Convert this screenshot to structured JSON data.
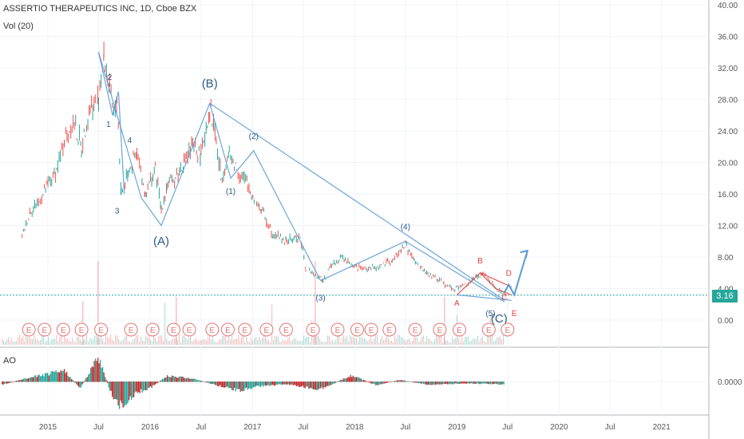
{
  "header": {
    "title": "ASSERTIO THERAPEUTICS INC, 1D, Cboe BZX",
    "volume_label": "Vol (20)"
  },
  "ao_label": "AO",
  "last_price": "3.16",
  "colors": {
    "up": "#26a69a",
    "down": "#ef5350",
    "wave_line": "#5b9bd5",
    "wave_red": "#e04040",
    "ao_up": "#26a69a",
    "ao_down": "#c62828"
  },
  "chart_data": {
    "type": "line",
    "title": "ASSERTIO THERAPEUTICS INC, 1D, Cboe BZX",
    "ylim": [
      -4,
      40
    ],
    "y_ticks": [
      "40.00",
      "36.00",
      "32.00",
      "28.00",
      "24.00",
      "20.00",
      "16.00",
      "12.00",
      "8.00",
      "4.00",
      "0.00"
    ],
    "x_ticks": [
      "2015",
      "Jul",
      "2016",
      "Jul",
      "2017",
      "Jul",
      "2018",
      "Jul",
      "2019",
      "Jul",
      "2020",
      "Jul",
      "2021"
    ],
    "ao_tick": "0.0000",
    "price_series": [
      [
        "2014-10-01",
        10.5
      ],
      [
        "2014-11-01",
        14
      ],
      [
        "2014-12-01",
        15
      ],
      [
        "2015-01-01",
        17
      ],
      [
        "2015-02-01",
        19
      ],
      [
        "2015-03-01",
        23
      ],
      [
        "2015-04-01",
        25
      ],
      [
        "2015-05-01",
        22
      ],
      [
        "2015-06-01",
        27
      ],
      [
        "2015-07-01",
        28
      ],
      [
        "2015-07-20",
        33.5
      ],
      [
        "2015-08-10",
        29
      ],
      [
        "2015-08-25",
        26
      ],
      [
        "2015-09-05",
        28
      ],
      [
        "2015-09-20",
        16
      ],
      [
        "2015-10-15",
        19
      ],
      [
        "2015-11-15",
        21
      ],
      [
        "2015-12-15",
        16
      ],
      [
        "2016-01-20",
        19
      ],
      [
        "2016-02-10",
        14
      ],
      [
        "2016-03-01",
        17
      ],
      [
        "2016-04-01",
        18
      ],
      [
        "2016-05-01",
        20
      ],
      [
        "2016-06-01",
        22
      ],
      [
        "2016-07-01",
        21
      ],
      [
        "2016-08-01",
        27
      ],
      [
        "2016-08-20",
        24
      ],
      [
        "2016-09-10",
        18
      ],
      [
        "2016-10-10",
        21
      ],
      [
        "2016-11-10",
        19
      ],
      [
        "2016-12-15",
        17
      ],
      [
        "2017-02-01",
        14
      ],
      [
        "2017-03-15",
        11
      ],
      [
        "2017-05-01",
        10
      ],
      [
        "2017-06-20",
        10.5
      ],
      [
        "2017-07-10",
        6.5
      ],
      [
        "2017-08-10",
        6
      ],
      [
        "2017-09-10",
        5
      ],
      [
        "2017-10-10",
        7
      ],
      [
        "2017-11-15",
        8
      ],
      [
        "2017-12-20",
        7
      ],
      [
        "2018-02-01",
        6.5
      ],
      [
        "2018-04-01",
        6.8
      ],
      [
        "2018-05-15",
        7.5
      ],
      [
        "2018-07-01",
        9.5
      ],
      [
        "2018-08-10",
        7
      ],
      [
        "2018-09-15",
        6
      ],
      [
        "2018-11-01",
        5
      ],
      [
        "2018-12-20",
        4
      ],
      [
        "2019-02-01",
        4.5
      ],
      [
        "2019-03-15",
        5.5
      ],
      [
        "2019-04-10",
        6
      ],
      [
        "2019-05-10",
        4.5
      ],
      [
        "2019-06-10",
        3.5
      ],
      [
        "2019-06-25",
        3.2
      ]
    ],
    "projection": [
      [
        "2019-06-20",
        3.5
      ],
      [
        "2019-07-05",
        4.5
      ],
      [
        "2019-07-25",
        3.2
      ],
      [
        "2019-09-10",
        8.8
      ]
    ],
    "wave_lines": [
      [
        [
          "2015-07-01",
          34
        ],
        [
          "2015-12-01",
          15.5
        ],
        [
          "2016-02-10",
          12
        ],
        [
          "2016-06-01",
          22
        ],
        [
          "2016-08-01",
          27.5
        ],
        [
          "2019-06-20",
          2.5
        ]
      ],
      [
        [
          "2016-08-01",
          27.5
        ],
        [
          "2016-10-15",
          18
        ],
        [
          "2017-01-05",
          21.5
        ],
        [
          "2017-09-01",
          5
        ],
        [
          "2018-07-01",
          10
        ],
        [
          "2019-06-20",
          2.3
        ]
      ],
      [
        [
          "2015-07-01",
          34
        ],
        [
          "2015-08-20",
          26
        ],
        [
          "2015-09-10",
          29
        ],
        [
          "2015-10-01",
          16
        ]
      ],
      [
        [
          "2019-01-01",
          3.2
        ],
        [
          "2019-03-25",
          6
        ],
        [
          "2019-05-20",
          4
        ],
        [
          "2019-07-15",
          3.2
        ]
      ],
      [
        [
          "2019-03-25",
          6
        ],
        [
          "2019-07-15",
          4.2
        ]
      ],
      [
        [
          "2019-01-01",
          3.2
        ],
        [
          "2019-07-15",
          2.5
        ]
      ]
    ],
    "wave_labels": [
      {
        "text": "2",
        "date": "2015-08-10",
        "y": 30.5,
        "color": "blue"
      },
      {
        "text": "1",
        "date": "2015-08-05",
        "y": 24.5,
        "color": "blue"
      },
      {
        "text": "4",
        "date": "2015-10-20",
        "y": 22.5,
        "color": "blue"
      },
      {
        "text": "3",
        "date": "2015-09-05",
        "y": 13.5,
        "color": "blue"
      },
      {
        "text": "(A)",
        "date": "2016-02-10",
        "y": 9.5,
        "color": "blue"
      },
      {
        "text": "(B)",
        "date": "2016-08-01",
        "y": 29.5,
        "color": "blue"
      },
      {
        "text": "(2)",
        "date": "2017-01-05",
        "y": 23,
        "color": "blue"
      },
      {
        "text": "(1)",
        "date": "2016-10-15",
        "y": 16,
        "color": "blue"
      },
      {
        "text": "(3)",
        "date": "2017-09-01",
        "y": 2.5,
        "color": "blue"
      },
      {
        "text": "(4)",
        "date": "2018-07-01",
        "y": 11.5,
        "color": "blue"
      },
      {
        "text": "(5)",
        "date": "2019-05-01",
        "y": 0.5,
        "color": "blue"
      },
      {
        "text": "(C)",
        "date": "2019-06-01",
        "y": -0.3,
        "color": "blue"
      },
      {
        "text": "A",
        "date": "2019-01-01",
        "y": 1.8,
        "color": "red"
      },
      {
        "text": "B",
        "date": "2019-03-25",
        "y": 7.2,
        "color": "red"
      },
      {
        "text": "C",
        "date": "2019-06-20",
        "y": 2.6,
        "color": "red"
      },
      {
        "text": "D",
        "date": "2019-07-05",
        "y": 5.6,
        "color": "red"
      },
      {
        "text": "E",
        "date": "2019-07-25",
        "y": 0.5,
        "color": "red"
      }
    ],
    "earnings_marker": "E",
    "earnings_dates": [
      "2014-10-25",
      "2014-12-20",
      "2015-02-25",
      "2015-05-01",
      "2015-07-10",
      "2015-10-25",
      "2016-01-10",
      "2016-03-25",
      "2016-05-20",
      "2016-08-10",
      "2016-10-05",
      "2016-12-05",
      "2017-02-20",
      "2017-05-01",
      "2017-08-05",
      "2017-11-01",
      "2018-01-10",
      "2018-03-01",
      "2018-05-05",
      "2018-08-05",
      "2018-11-01",
      "2019-01-10",
      "2019-04-25",
      "2019-07-01",
      "2019-08-01"
    ]
  }
}
